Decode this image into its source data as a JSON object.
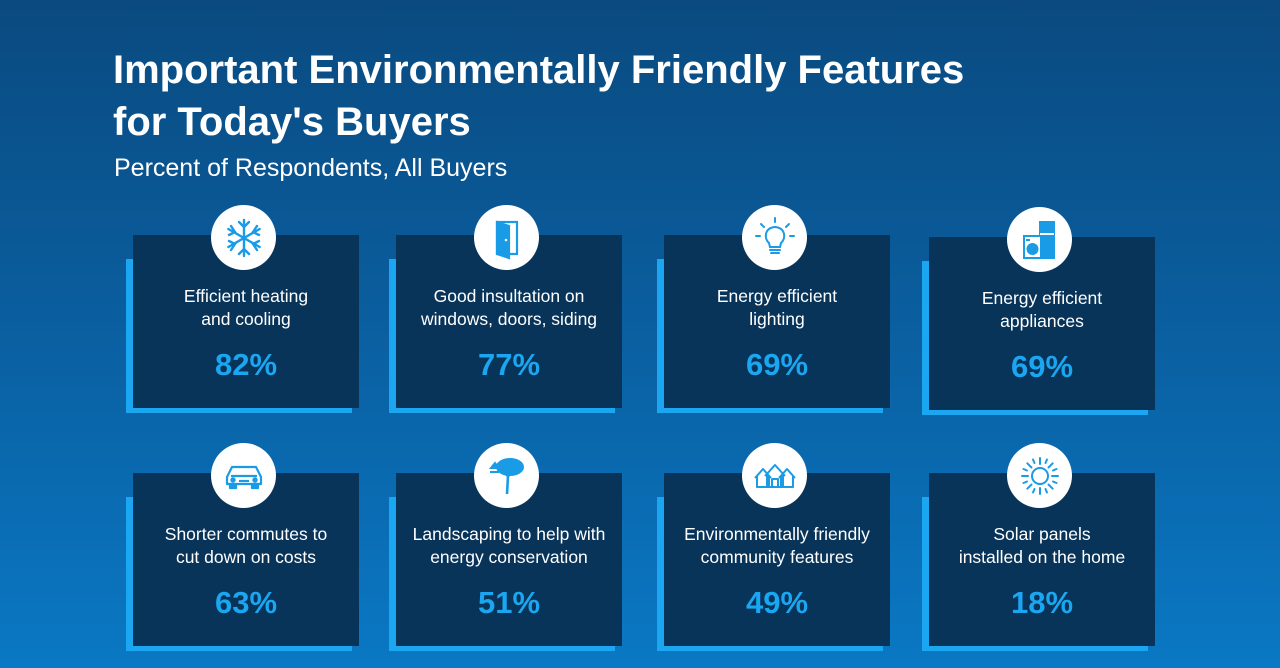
{
  "header": {
    "title": "Important Environmentally Friendly Features\nfor Today's  Buyers",
    "subtitle": "Percent of Respondents, All Buyers"
  },
  "colors": {
    "accent": "#1aa6f0",
    "card": "#08345a",
    "icon": "#1a9be6"
  },
  "cards": [
    {
      "label": "Efficient heating\nand cooling",
      "value": "82%",
      "icon": "snowflake-icon"
    },
    {
      "label": "Good insultation on\nwindows, doors, siding",
      "value": "77%",
      "icon": "door-icon"
    },
    {
      "label": "Energy efficient\nlighting",
      "value": "69%",
      "icon": "lightbulb-icon"
    },
    {
      "label": "Energy efficient\nappliances",
      "value": "69%",
      "icon": "appliances-icon"
    },
    {
      "label": "Shorter commutes to\ncut down on costs",
      "value": "63%",
      "icon": "car-icon"
    },
    {
      "label": "Landscaping to help with\nenergy conservation",
      "value": "51%",
      "icon": "tree-icon"
    },
    {
      "label": "Environmentally friendly\ncommunity features",
      "value": "49%",
      "icon": "houses-icon"
    },
    {
      "label": "Solar panels\ninstalled on the home",
      "value": "18%",
      "icon": "sun-icon"
    }
  ]
}
